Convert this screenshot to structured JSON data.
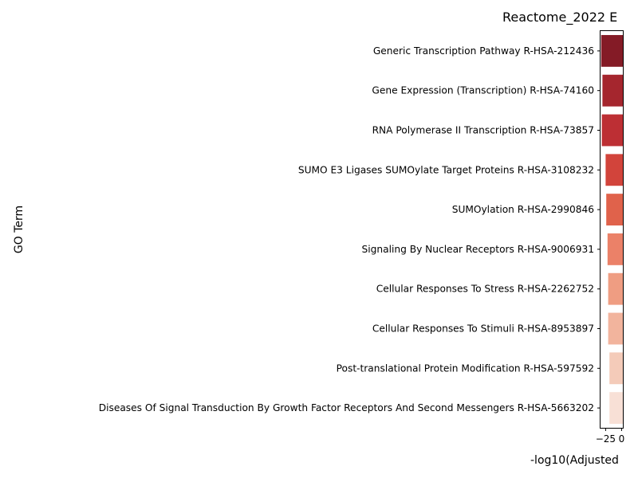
{
  "chart_data": {
    "type": "bar",
    "orientation": "horizontal",
    "title": "Reactome_2022 E",
    "xlabel": "-log10(Adjusted",
    "ylabel": "GO Term",
    "xlim": [
      -33,
      2
    ],
    "xticks": [
      {
        "value": -25,
        "label": "−25"
      },
      {
        "value": 0,
        "label": "0"
      }
    ],
    "grid": false,
    "categories": [
      "Generic Transcription Pathway R-HSA-212436",
      "Gene Expression (Transcription) R-HSA-74160",
      "RNA Polymerase II Transcription R-HSA-73857",
      "SUMO E3 Ligases SUMOylate Target Proteins R-HSA-3108232",
      "SUMOylation R-HSA-2990846",
      "Signaling By Nuclear Receptors R-HSA-9006931",
      "Cellular Responses To Stress R-HSA-2262752",
      "Cellular Responses To Stimuli R-HSA-8953897",
      "Post-translational Protein Modification R-HSA-597592",
      "Diseases Of Signal Transduction By Growth Factor Receptors And Second Messengers R-HSA-5663202"
    ],
    "bar_start": 2,
    "values": [
      -32,
      -30,
      -31,
      -25,
      -24,
      -22,
      -21,
      -21,
      -19,
      -19
    ],
    "colors": [
      "#841b26",
      "#a5262e",
      "#bd2f34",
      "#d2443b",
      "#e0624b",
      "#eb8168",
      "#ef9d82",
      "#f2b49d",
      "#f4cbb9",
      "#f8e0d6"
    ]
  }
}
